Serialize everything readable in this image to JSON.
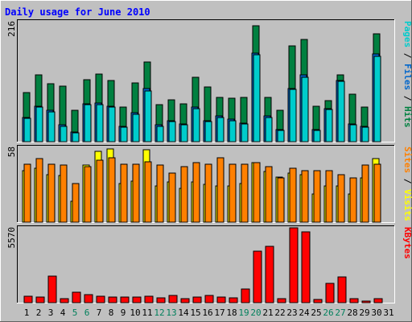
{
  "chart_data": {
    "type": "bar",
    "title": "Daily usage for June 2010",
    "categories": [
      "1",
      "2",
      "3",
      "4",
      "5",
      "6",
      "7",
      "8",
      "9",
      "10",
      "11",
      "12",
      "13",
      "14",
      "15",
      "16",
      "17",
      "18",
      "19",
      "20",
      "21",
      "22",
      "23",
      "24",
      "25",
      "26",
      "27",
      "28",
      "29",
      "30",
      "31"
    ],
    "weekend_days": [
      "5",
      "6",
      "12",
      "13",
      "19",
      "20",
      "26",
      "27"
    ],
    "panels": [
      {
        "id": "hits-files-pages",
        "ymax": 216,
        "ymax_label": "216",
        "side_label": [
          {
            "text": "Pages",
            "color": "#00cccc"
          },
          {
            "text": " / ",
            "color": "#000000"
          },
          {
            "text": "Files",
            "color": "#0066cc"
          },
          {
            "text": " / ",
            "color": "#000000"
          },
          {
            "text": "Hits",
            "color": "#008040"
          }
        ],
        "series": [
          {
            "name": "Hits",
            "color": "#008040",
            "values": [
              88,
              120,
              104,
              100,
              56,
              112,
              122,
              110,
              62,
              106,
              144,
              66,
              76,
              68,
              116,
              98,
              80,
              78,
              80,
              209,
              80,
              56,
              172,
              184,
              64,
              74,
              120,
              86,
              62,
              194,
              0
            ]
          },
          {
            "name": "Files",
            "color": "#0066cc",
            "values": [
              44,
              64,
              56,
              30,
              18,
              68,
              70,
              64,
              28,
              52,
              96,
              30,
              38,
              32,
              62,
              38,
              46,
              40,
              34,
              160,
              46,
              22,
              96,
              120,
              22,
              60,
              110,
              32,
              28,
              158,
              0
            ]
          },
          {
            "name": "Pages",
            "color": "#00cccc",
            "values": [
              42,
              62,
              54,
              28,
              16,
              66,
              66,
              62,
              26,
              50,
              92,
              28,
              36,
              30,
              60,
              36,
              44,
              38,
              32,
              156,
              44,
              20,
              94,
              116,
              20,
              58,
              108,
              30,
              26,
              154,
              0
            ]
          }
        ]
      },
      {
        "id": "visits-sites",
        "ymax": 58,
        "ymax_label": "58",
        "side_label": [
          {
            "text": "Sites",
            "color": "#ff8000"
          },
          {
            "text": " / ",
            "color": "#000000"
          },
          {
            "text": "Visits",
            "color": "#ffff00"
          }
        ],
        "series": [
          {
            "name": "Visits",
            "color": "#ffff00",
            "values": [
              40,
              42,
              37,
              36,
              16,
              44,
              55,
              57,
              30,
              32,
              56,
              28,
              31,
              26,
              31,
              29,
              28,
              28,
              30,
              46,
              39,
              35,
              38,
              37,
              22,
              28,
              28,
              22,
              34,
              49,
              0
            ]
          },
          {
            "name": "Sites",
            "color": "#ff8000",
            "values": [
              45,
              49,
              45,
              44,
              30,
              43,
              48,
              50,
              45,
              45,
              47,
              44,
              38,
              43,
              46,
              45,
              50,
              45,
              45,
              46,
              43,
              34,
              42,
              40,
              40,
              40,
              37,
              34,
              44,
              45,
              0
            ]
          }
        ]
      },
      {
        "id": "kbytes",
        "ymax": 5570,
        "ymax_label": "5570",
        "side_label": [
          {
            "text": "KBytes",
            "color": "#ff0000"
          }
        ],
        "series": [
          {
            "name": "KBytes",
            "color": "#ff0000",
            "values": [
              480,
              420,
              1980,
              300,
              780,
              580,
              480,
              440,
              400,
              420,
              460,
              330,
              540,
              320,
              420,
              520,
              420,
              340,
              1040,
              3830,
              4200,
              320,
              5570,
              5250,
              240,
              1420,
              1910,
              300,
              120,
              320,
              0
            ]
          }
        ]
      }
    ]
  }
}
